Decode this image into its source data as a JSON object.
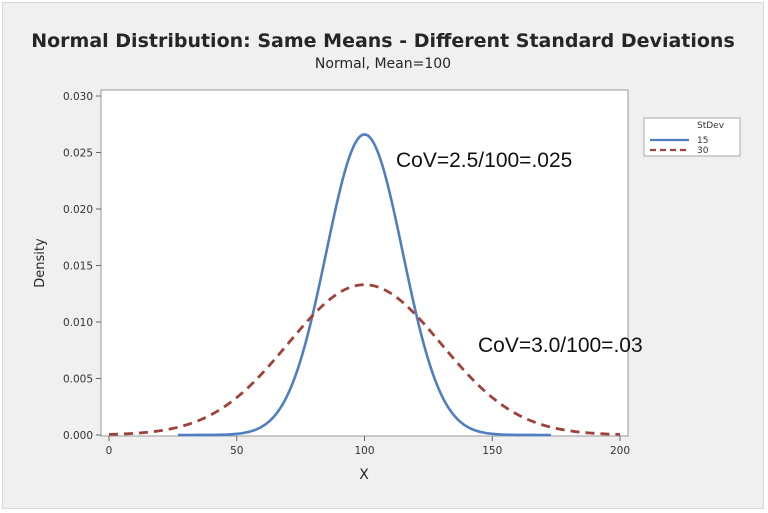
{
  "chart_data": {
    "type": "line",
    "title": "Normal Distribution: Same Means - Different Standard Deviations",
    "subtitle": "Normal, Mean=100",
    "xlabel": "X",
    "ylabel": "Density",
    "xlim": [
      0,
      200
    ],
    "ylim": [
      0,
      0.03
    ],
    "x_ticks": [
      "0",
      "50",
      "100",
      "150",
      "200"
    ],
    "y_ticks": [
      "0.000",
      "0.005",
      "0.010",
      "0.015",
      "0.020",
      "0.025",
      "0.030"
    ],
    "grid": false,
    "legend": {
      "title": "StDev",
      "placement": "top-right"
    },
    "series": [
      {
        "name": "15",
        "distribution": "normal",
        "mean": 100,
        "peak_density": 0.0266,
        "x_range": [
          27,
          173
        ],
        "color": "#4f7fc0",
        "style": "solid"
      },
      {
        "name": "30",
        "distribution": "normal",
        "mean": 100,
        "peak_density": 0.0133,
        "x_range": [
          0,
          200
        ],
        "color": "#a0413c",
        "style": "dashed"
      }
    ],
    "annotations": [
      "CoV=2.5/100=.025",
      "CoV=3.0/100=.03"
    ]
  }
}
